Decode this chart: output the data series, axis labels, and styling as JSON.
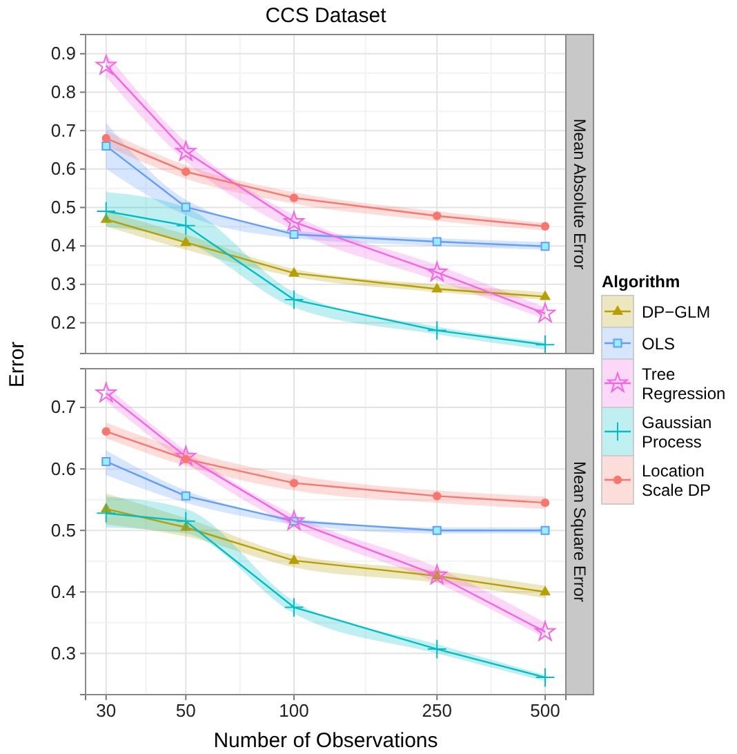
{
  "chart_data": [
    {
      "type": "line",
      "title": "CCS Dataset",
      "subtitle": "Mean Absolute Error",
      "x": [
        30,
        50,
        100,
        250,
        500
      ],
      "xlim": [
        26.3,
        571
      ],
      "xticks": [
        30,
        50,
        100,
        250,
        500
      ],
      "log": "x",
      "ylim": [
        0.12,
        0.95
      ],
      "yticks": [
        0.2,
        0.3,
        0.4,
        0.5,
        0.6,
        0.7,
        0.8,
        0.9
      ],
      "tick_labels": "y",
      "grid": true,
      "legend": "right",
      "legend_title": "Algorithm",
      "series": [
        {
          "name": "DP−GLM",
          "color": "#b79f00",
          "marker": "triangle",
          "values": [
            0.469,
            0.409,
            0.329,
            0.288,
            0.268
          ],
          "lower": [
            0.45,
            0.39,
            0.32,
            0.28,
            0.26
          ],
          "upper": [
            0.49,
            0.43,
            0.34,
            0.3,
            0.28
          ]
        },
        {
          "name": "OLS",
          "color": "#619cff",
          "marker": "square",
          "values": [
            0.66,
            0.501,
            0.43,
            0.411,
            0.399
          ],
          "lower": [
            0.6,
            0.48,
            0.42,
            0.4,
            0.39
          ],
          "upper": [
            0.72,
            0.52,
            0.44,
            0.42,
            0.41
          ]
        },
        {
          "name": "Tree Regression",
          "color": "#f564e3",
          "marker": "star",
          "values": [
            0.869,
            0.645,
            0.462,
            0.331,
            0.224
          ],
          "lower": [
            0.84,
            0.62,
            0.44,
            0.31,
            0.21
          ],
          "upper": [
            0.9,
            0.67,
            0.48,
            0.35,
            0.24
          ]
        },
        {
          "name": "Gaussian Process",
          "color": "#00bfc4",
          "marker": "cross",
          "values": [
            0.49,
            0.453,
            0.26,
            0.18,
            0.143
          ],
          "lower": [
            0.45,
            0.41,
            0.24,
            0.17,
            0.13
          ],
          "upper": [
            0.54,
            0.5,
            0.28,
            0.19,
            0.15
          ]
        },
        {
          "name": "Location Scale DP",
          "color": "#f8766d",
          "marker": "circle",
          "values": [
            0.68,
            0.593,
            0.525,
            0.478,
            0.451
          ],
          "lower": [
            0.66,
            0.575,
            0.51,
            0.465,
            0.44
          ],
          "upper": [
            0.7,
            0.61,
            0.54,
            0.49,
            0.46
          ]
        }
      ]
    },
    {
      "type": "line",
      "subtitle": "Mean Square Error",
      "xlabel": "Number of Observations",
      "ylabel": "Error",
      "x": [
        30,
        50,
        100,
        250,
        500
      ],
      "xlim": [
        26.3,
        571
      ],
      "xticks": [
        30,
        50,
        100,
        250,
        500
      ],
      "log": "x",
      "ylim": [
        0.233,
        0.763
      ],
      "yticks": [
        0.3,
        0.4,
        0.5,
        0.6,
        0.7
      ],
      "grid": true,
      "series": [
        {
          "name": "DP−GLM",
          "color": "#b79f00",
          "marker": "triangle",
          "values": [
            0.535,
            0.505,
            0.451,
            0.426,
            0.4
          ],
          "lower": [
            0.51,
            0.49,
            0.44,
            0.415,
            0.39
          ],
          "upper": [
            0.56,
            0.52,
            0.46,
            0.435,
            0.41
          ]
        },
        {
          "name": "OLS",
          "color": "#619cff",
          "marker": "square",
          "values": [
            0.612,
            0.556,
            0.515,
            0.5,
            0.5
          ],
          "lower": [
            0.59,
            0.545,
            0.51,
            0.495,
            0.495
          ],
          "upper": [
            0.63,
            0.565,
            0.52,
            0.505,
            0.505
          ]
        },
        {
          "name": "Tree Regression",
          "color": "#f564e3",
          "marker": "star",
          "values": [
            0.723,
            0.62,
            0.515,
            0.427,
            0.335
          ],
          "lower": [
            0.71,
            0.61,
            0.505,
            0.415,
            0.325
          ],
          "upper": [
            0.735,
            0.63,
            0.525,
            0.44,
            0.35
          ]
        },
        {
          "name": "Gaussian Process",
          "color": "#00bfc4",
          "marker": "cross",
          "values": [
            0.528,
            0.515,
            0.375,
            0.307,
            0.261
          ],
          "lower": [
            0.505,
            0.495,
            0.365,
            0.3,
            0.255
          ],
          "upper": [
            0.555,
            0.535,
            0.385,
            0.315,
            0.265
          ]
        },
        {
          "name": "Location Scale DP",
          "color": "#f8766d",
          "marker": "circle",
          "values": [
            0.661,
            0.616,
            0.577,
            0.556,
            0.545
          ],
          "lower": [
            0.65,
            0.605,
            0.565,
            0.545,
            0.535
          ],
          "upper": [
            0.675,
            0.63,
            0.59,
            0.565,
            0.555
          ]
        }
      ]
    }
  ]
}
